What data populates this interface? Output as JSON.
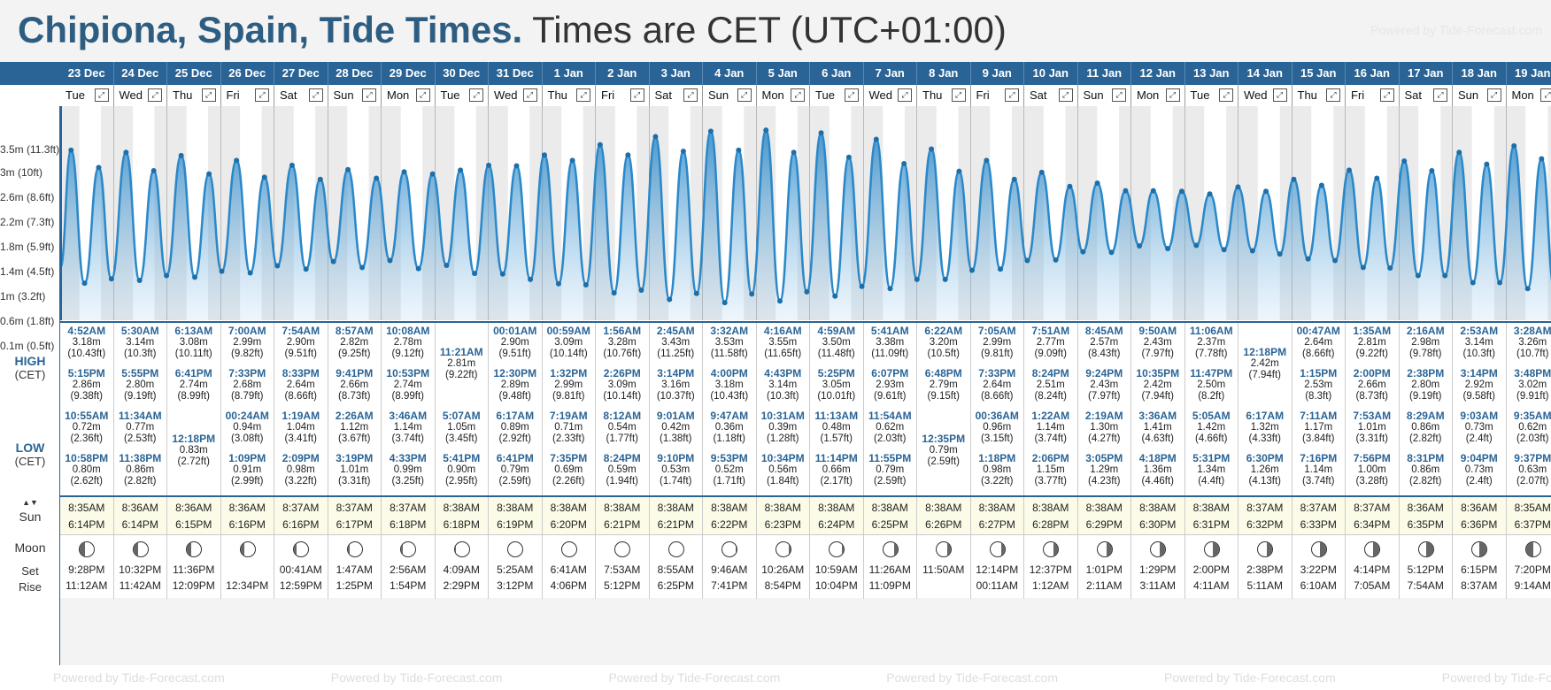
{
  "title": {
    "location": "Chipiona, Spain, Tide Times.",
    "timezone": "Times are CET (UTC+01:00)"
  },
  "powered_by": "Powered by Tide-Forecast.com",
  "labels": {
    "high": "HIGH",
    "cet": "(CET)",
    "low": "LOW",
    "sun": "Sun",
    "sun_arrows": "▲▼",
    "moon": "Moon",
    "set": "Set",
    "rise": "Rise"
  },
  "yaxis": [
    "3.5m (11.3ft)",
    "3m (10ft)",
    "2.6m (8.6ft)",
    "2.2m (7.3ft)",
    "1.8m (5.9ft)",
    "1.4m (4.5ft)",
    "1m (3.2ft)",
    "0.6m (1.8ft)",
    "0.1m (0.5ft)"
  ],
  "days": [
    {
      "date": "23 Dec",
      "dow": "Tue",
      "high": [
        [
          "4:52AM",
          "3.18m",
          "(10.43ft)"
        ],
        [
          "5:15PM",
          "2.86m",
          "(9.38ft)"
        ]
      ],
      "low": [
        [
          "10:55AM",
          "0.72m",
          "(2.36ft)"
        ],
        [
          "10:58PM",
          "0.80m",
          "(2.62ft)"
        ]
      ],
      "sunrise": "8:35AM",
      "sunset": "6:14PM",
      "moonset": "9:28PM",
      "moonrise": "11:12AM",
      "phase": 0.1
    },
    {
      "date": "24 Dec",
      "dow": "Wed",
      "high": [
        [
          "5:30AM",
          "3.14m",
          "(10.3ft)"
        ],
        [
          "5:55PM",
          "2.80m",
          "(9.19ft)"
        ]
      ],
      "low": [
        [
          "11:34AM",
          "0.77m",
          "(2.53ft)"
        ],
        [
          "11:38PM",
          "0.86m",
          "(2.82ft)"
        ]
      ],
      "sunrise": "8:36AM",
      "sunset": "6:14PM",
      "moonset": "10:32PM",
      "moonrise": "11:42AM",
      "phase": 0.15
    },
    {
      "date": "25 Dec",
      "dow": "Thu",
      "high": [
        [
          "6:13AM",
          "3.08m",
          "(10.11ft)"
        ],
        [
          "6:41PM",
          "2.74m",
          "(8.99ft)"
        ]
      ],
      "low": [
        [
          "12:18PM",
          "0.83m",
          "(2.72ft)"
        ]
      ],
      "sunrise": "8:36AM",
      "sunset": "6:15PM",
      "moonset": "11:36PM",
      "moonrise": "12:09PM",
      "phase": 0.2
    },
    {
      "date": "26 Dec",
      "dow": "Fri",
      "high": [
        [
          "7:00AM",
          "2.99m",
          "(9.82ft)"
        ],
        [
          "7:33PM",
          "2.68m",
          "(8.79ft)"
        ]
      ],
      "low": [
        [
          "00:24AM",
          "0.94m",
          "(3.08ft)"
        ],
        [
          "1:09PM",
          "0.91m",
          "(2.99ft)"
        ]
      ],
      "sunrise": "8:36AM",
      "sunset": "6:16PM",
      "moonset": "",
      "moonrise": "12:34PM",
      "phase": 0.25
    },
    {
      "date": "27 Dec",
      "dow": "Sat",
      "high": [
        [
          "7:54AM",
          "2.90m",
          "(9.51ft)"
        ],
        [
          "8:33PM",
          "2.64m",
          "(8.66ft)"
        ]
      ],
      "low": [
        [
          "1:19AM",
          "1.04m",
          "(3.41ft)"
        ],
        [
          "2:09PM",
          "0.98m",
          "(3.22ft)"
        ]
      ],
      "sunrise": "8:37AM",
      "sunset": "6:16PM",
      "moonset": "00:41AM",
      "moonrise": "12:59PM",
      "phase": 0.3
    },
    {
      "date": "28 Dec",
      "dow": "Sun",
      "high": [
        [
          "8:57AM",
          "2.82m",
          "(9.25ft)"
        ],
        [
          "9:41PM",
          "2.66m",
          "(8.73ft)"
        ]
      ],
      "low": [
        [
          "2:26AM",
          "1.12m",
          "(3.67ft)"
        ],
        [
          "3:19PM",
          "1.01m",
          "(3.31ft)"
        ]
      ],
      "sunrise": "8:37AM",
      "sunset": "6:17PM",
      "moonset": "1:47AM",
      "moonrise": "1:25PM",
      "phase": 0.35
    },
    {
      "date": "29 Dec",
      "dow": "Mon",
      "high": [
        [
          "10:08AM",
          "2.78m",
          "(9.12ft)"
        ],
        [
          "10:53PM",
          "2.74m",
          "(8.99ft)"
        ]
      ],
      "low": [
        [
          "3:46AM",
          "1.14m",
          "(3.74ft)"
        ],
        [
          "4:33PM",
          "0.99m",
          "(3.25ft)"
        ]
      ],
      "sunrise": "8:37AM",
      "sunset": "6:18PM",
      "moonset": "2:56AM",
      "moonrise": "1:54PM",
      "phase": 0.4
    },
    {
      "date": "30 Dec",
      "dow": "Tue",
      "high": [
        [
          "11:21AM",
          "2.81m",
          "(9.22ft)"
        ]
      ],
      "low": [
        [
          "5:07AM",
          "1.05m",
          "(3.45ft)"
        ],
        [
          "5:41PM",
          "0.90m",
          "(2.95ft)"
        ]
      ],
      "sunrise": "8:38AM",
      "sunset": "6:18PM",
      "moonset": "4:09AM",
      "moonrise": "2:29PM",
      "phase": 0.45
    },
    {
      "date": "31 Dec",
      "dow": "Wed",
      "high": [
        [
          "00:01AM",
          "2.90m",
          "(9.51ft)"
        ],
        [
          "12:30PM",
          "2.89m",
          "(9.48ft)"
        ]
      ],
      "low": [
        [
          "6:17AM",
          "0.89m",
          "(2.92ft)"
        ],
        [
          "6:41PM",
          "0.79m",
          "(2.59ft)"
        ]
      ],
      "sunrise": "8:38AM",
      "sunset": "6:19PM",
      "moonset": "5:25AM",
      "moonrise": "3:12PM",
      "phase": 0.5
    },
    {
      "date": "1 Jan",
      "dow": "Thu",
      "high": [
        [
          "00:59AM",
          "3.09m",
          "(10.14ft)"
        ],
        [
          "1:32PM",
          "2.99m",
          "(9.81ft)"
        ]
      ],
      "low": [
        [
          "7:19AM",
          "0.71m",
          "(2.33ft)"
        ],
        [
          "7:35PM",
          "0.69m",
          "(2.26ft)"
        ]
      ],
      "sunrise": "8:38AM",
      "sunset": "6:20PM",
      "moonset": "6:41AM",
      "moonrise": "4:06PM",
      "phase": 0.5
    },
    {
      "date": "2 Jan",
      "dow": "Fri",
      "high": [
        [
          "1:56AM",
          "3.28m",
          "(10.76ft)"
        ],
        [
          "2:26PM",
          "3.09m",
          "(10.14ft)"
        ]
      ],
      "low": [
        [
          "8:12AM",
          "0.54m",
          "(1.77ft)"
        ],
        [
          "8:24PM",
          "0.59m",
          "(1.94ft)"
        ]
      ],
      "sunrise": "8:38AM",
      "sunset": "6:21PM",
      "moonset": "7:53AM",
      "moonrise": "5:12PM",
      "phase": 0.5
    },
    {
      "date": "3 Jan",
      "dow": "Sat",
      "high": [
        [
          "2:45AM",
          "3.43m",
          "(11.25ft)"
        ],
        [
          "3:14PM",
          "3.16m",
          "(10.37ft)"
        ]
      ],
      "low": [
        [
          "9:01AM",
          "0.42m",
          "(1.38ft)"
        ],
        [
          "9:10PM",
          "0.53m",
          "(1.74ft)"
        ]
      ],
      "sunrise": "8:38AM",
      "sunset": "6:21PM",
      "moonset": "8:55AM",
      "moonrise": "6:25PM",
      "phase": 0.5
    },
    {
      "date": "4 Jan",
      "dow": "Sun",
      "high": [
        [
          "3:32AM",
          "3.53m",
          "(11.58ft)"
        ],
        [
          "4:00PM",
          "3.18m",
          "(10.43ft)"
        ]
      ],
      "low": [
        [
          "9:47AM",
          "0.36m",
          "(1.18ft)"
        ],
        [
          "9:53PM",
          "0.52m",
          "(1.71ft)"
        ]
      ],
      "sunrise": "8:38AM",
      "sunset": "6:22PM",
      "moonset": "9:46AM",
      "moonrise": "7:41PM",
      "phase": 0.55
    },
    {
      "date": "5 Jan",
      "dow": "Mon",
      "high": [
        [
          "4:16AM",
          "3.55m",
          "(11.65ft)"
        ],
        [
          "4:43PM",
          "3.14m",
          "(10.3ft)"
        ]
      ],
      "low": [
        [
          "10:31AM",
          "0.39m",
          "(1.28ft)"
        ],
        [
          "10:34PM",
          "0.56m",
          "(1.84ft)"
        ]
      ],
      "sunrise": "8:38AM",
      "sunset": "6:23PM",
      "moonset": "10:26AM",
      "moonrise": "8:54PM",
      "phase": 0.6
    },
    {
      "date": "6 Jan",
      "dow": "Tue",
      "high": [
        [
          "4:59AM",
          "3.50m",
          "(11.48ft)"
        ],
        [
          "5:25PM",
          "3.05m",
          "(10.01ft)"
        ]
      ],
      "low": [
        [
          "11:13AM",
          "0.48m",
          "(1.57ft)"
        ],
        [
          "11:14PM",
          "0.66m",
          "(2.17ft)"
        ]
      ],
      "sunrise": "8:38AM",
      "sunset": "6:24PM",
      "moonset": "10:59AM",
      "moonrise": "10:04PM",
      "phase": 0.65
    },
    {
      "date": "7 Jan",
      "dow": "Wed",
      "high": [
        [
          "5:41AM",
          "3.38m",
          "(11.09ft)"
        ],
        [
          "6:07PM",
          "2.93m",
          "(9.61ft)"
        ]
      ],
      "low": [
        [
          "11:54AM",
          "0.62m",
          "(2.03ft)"
        ],
        [
          "11:55PM",
          "0.79m",
          "(2.59ft)"
        ]
      ],
      "sunrise": "8:38AM",
      "sunset": "6:25PM",
      "moonset": "11:26AM",
      "moonrise": "11:09PM",
      "phase": 0.7
    },
    {
      "date": "8 Jan",
      "dow": "Thu",
      "high": [
        [
          "6:22AM",
          "3.20m",
          "(10.5ft)"
        ],
        [
          "6:48PM",
          "2.79m",
          "(9.15ft)"
        ]
      ],
      "low": [
        [
          "12:35PM",
          "0.79m",
          "(2.59ft)"
        ]
      ],
      "sunrise": "8:38AM",
      "sunset": "6:26PM",
      "moonset": "11:50AM",
      "moonrise": "",
      "phase": 0.72
    },
    {
      "date": "9 Jan",
      "dow": "Fri",
      "high": [
        [
          "7:05AM",
          "2.99m",
          "(9.81ft)"
        ],
        [
          "7:33PM",
          "2.64m",
          "(8.66ft)"
        ]
      ],
      "low": [
        [
          "00:36AM",
          "0.96m",
          "(3.15ft)"
        ],
        [
          "1:18PM",
          "0.98m",
          "(3.22ft)"
        ]
      ],
      "sunrise": "8:38AM",
      "sunset": "6:27PM",
      "moonset": "12:14PM",
      "moonrise": "00:11AM",
      "phase": 0.75
    },
    {
      "date": "10 Jan",
      "dow": "Sat",
      "high": [
        [
          "7:51AM",
          "2.77m",
          "(9.09ft)"
        ],
        [
          "8:24PM",
          "2.51m",
          "(8.24ft)"
        ]
      ],
      "low": [
        [
          "1:22AM",
          "1.14m",
          "(3.74ft)"
        ],
        [
          "2:06PM",
          "1.15m",
          "(3.77ft)"
        ]
      ],
      "sunrise": "8:38AM",
      "sunset": "6:28PM",
      "moonset": "12:37PM",
      "moonrise": "1:12AM",
      "phase": 0.8
    },
    {
      "date": "11 Jan",
      "dow": "Sun",
      "high": [
        [
          "8:45AM",
          "2.57m",
          "(8.43ft)"
        ],
        [
          "9:24PM",
          "2.43m",
          "(7.97ft)"
        ]
      ],
      "low": [
        [
          "2:19AM",
          "1.30m",
          "(4.27ft)"
        ],
        [
          "3:05PM",
          "1.29m",
          "(4.23ft)"
        ]
      ],
      "sunrise": "8:38AM",
      "sunset": "6:29PM",
      "moonset": "1:01PM",
      "moonrise": "2:11AM",
      "phase": 0.82
    },
    {
      "date": "12 Jan",
      "dow": "Mon",
      "high": [
        [
          "9:50AM",
          "2.43m",
          "(7.97ft)"
        ],
        [
          "10:35PM",
          "2.42m",
          "(7.94ft)"
        ]
      ],
      "low": [
        [
          "3:36AM",
          "1.41m",
          "(4.63ft)"
        ],
        [
          "4:18PM",
          "1.36m",
          "(4.46ft)"
        ]
      ],
      "sunrise": "8:38AM",
      "sunset": "6:30PM",
      "moonset": "1:29PM",
      "moonrise": "3:11AM",
      "phase": 0.85
    },
    {
      "date": "13 Jan",
      "dow": "Tue",
      "high": [
        [
          "11:06AM",
          "2.37m",
          "(7.78ft)"
        ],
        [
          "11:47PM",
          "2.50m",
          "(8.2ft)"
        ]
      ],
      "low": [
        [
          "5:05AM",
          "1.42m",
          "(4.66ft)"
        ],
        [
          "5:31PM",
          "1.34m",
          "(4.4ft)"
        ]
      ],
      "sunrise": "8:38AM",
      "sunset": "6:31PM",
      "moonset": "2:00PM",
      "moonrise": "4:11AM",
      "phase": 0.88
    },
    {
      "date": "14 Jan",
      "dow": "Wed",
      "high": [
        [
          "12:18PM",
          "2.42m",
          "(7.94ft)"
        ]
      ],
      "low": [
        [
          "6:17AM",
          "1.32m",
          "(4.33ft)"
        ],
        [
          "6:30PM",
          "1.26m",
          "(4.13ft)"
        ]
      ],
      "sunrise": "8:37AM",
      "sunset": "6:32PM",
      "moonset": "2:38PM",
      "moonrise": "5:11AM",
      "phase": 0.9
    },
    {
      "date": "15 Jan",
      "dow": "Thu",
      "high": [
        [
          "00:47AM",
          "2.64m",
          "(8.66ft)"
        ],
        [
          "1:15PM",
          "2.53m",
          "(8.3ft)"
        ]
      ],
      "low": [
        [
          "7:11AM",
          "1.17m",
          "(3.84ft)"
        ],
        [
          "7:16PM",
          "1.14m",
          "(3.74ft)"
        ]
      ],
      "sunrise": "8:37AM",
      "sunset": "6:33PM",
      "moonset": "3:22PM",
      "moonrise": "6:10AM",
      "phase": 0.92
    },
    {
      "date": "16 Jan",
      "dow": "Fri",
      "high": [
        [
          "1:35AM",
          "2.81m",
          "(9.22ft)"
        ],
        [
          "2:00PM",
          "2.66m",
          "(8.73ft)"
        ]
      ],
      "low": [
        [
          "7:53AM",
          "1.01m",
          "(3.31ft)"
        ],
        [
          "7:56PM",
          "1.00m",
          "(3.28ft)"
        ]
      ],
      "sunrise": "8:37AM",
      "sunset": "6:34PM",
      "moonset": "4:14PM",
      "moonrise": "7:05AM",
      "phase": 0.95
    },
    {
      "date": "17 Jan",
      "dow": "Sat",
      "high": [
        [
          "2:16AM",
          "2.98m",
          "(9.78ft)"
        ],
        [
          "2:38PM",
          "2.80m",
          "(9.19ft)"
        ]
      ],
      "low": [
        [
          "8:29AM",
          "0.86m",
          "(2.82ft)"
        ],
        [
          "8:31PM",
          "0.86m",
          "(2.82ft)"
        ]
      ],
      "sunrise": "8:36AM",
      "sunset": "6:35PM",
      "moonset": "5:12PM",
      "moonrise": "7:54AM",
      "phase": 0.97
    },
    {
      "date": "18 Jan",
      "dow": "Sun",
      "high": [
        [
          "2:53AM",
          "3.14m",
          "(10.3ft)"
        ],
        [
          "3:14PM",
          "2.92m",
          "(9.58ft)"
        ]
      ],
      "low": [
        [
          "9:03AM",
          "0.73m",
          "(2.4ft)"
        ],
        [
          "9:04PM",
          "0.73m",
          "(2.4ft)"
        ]
      ],
      "sunrise": "8:36AM",
      "sunset": "6:36PM",
      "moonset": "6:15PM",
      "moonrise": "8:37AM",
      "phase": 0.99
    },
    {
      "date": "19 Jan",
      "dow": "Mon",
      "high": [
        [
          "3:28AM",
          "3.26m",
          "(10.7ft)"
        ],
        [
          "3:48PM",
          "3.02m",
          "(9.91ft)"
        ]
      ],
      "low": [
        [
          "9:35AM",
          "0.62m",
          "(2.03ft)"
        ],
        [
          "9:37PM",
          "0.63m",
          "(2.07ft)"
        ]
      ],
      "sunrise": "8:35AM",
      "sunset": "6:37PM",
      "moonset": "7:20PM",
      "moonrise": "9:14AM",
      "phase": 0.0
    }
  ],
  "colors": {
    "header": "#2a6496",
    "tide": "#2b88c9",
    "tide_fill": "#8cc1e6",
    "title_accent": "#2e5d82"
  }
}
